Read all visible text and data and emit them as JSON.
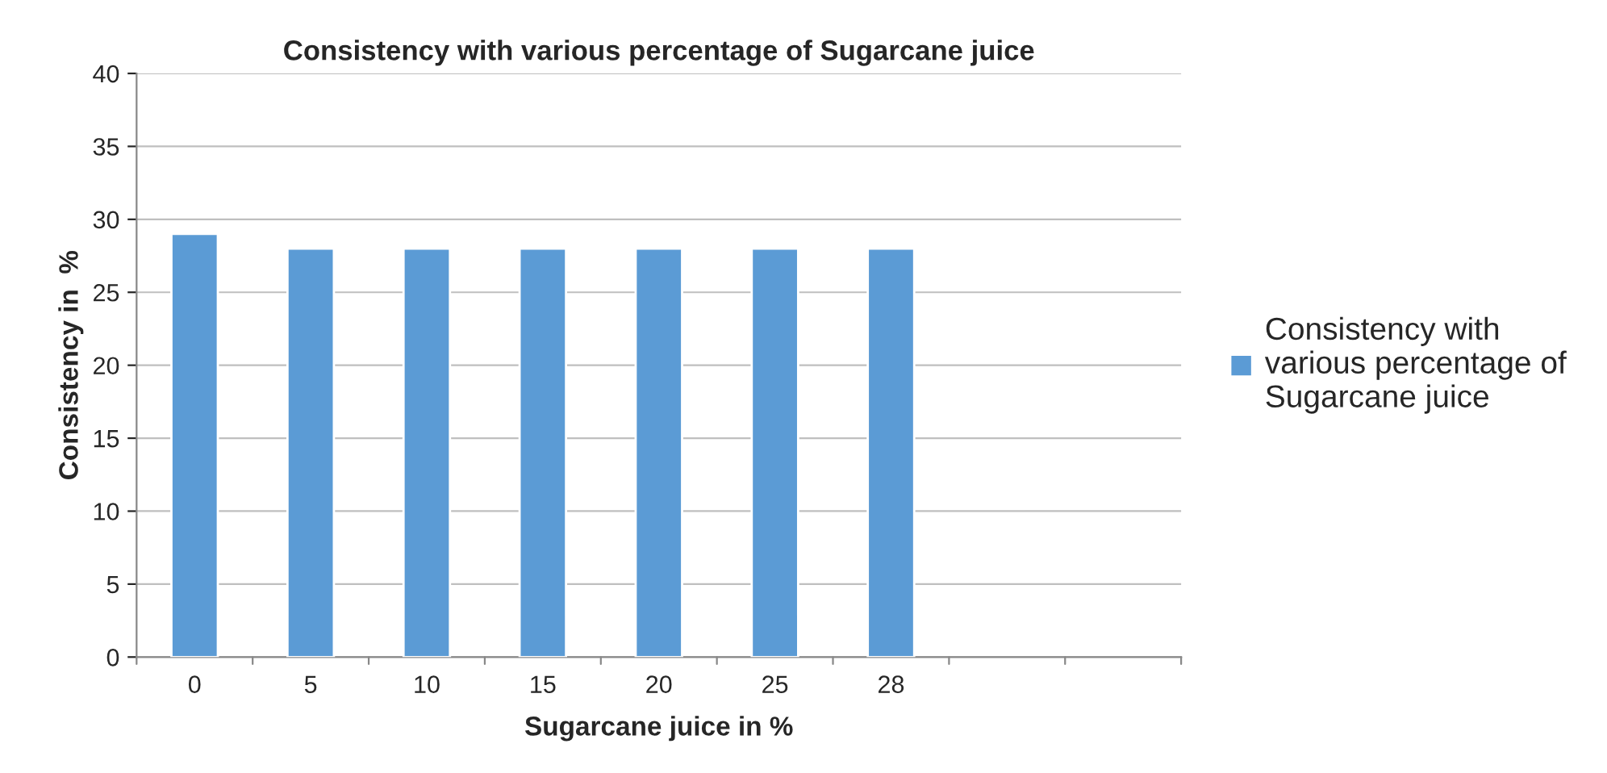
{
  "chart_data": {
    "type": "bar",
    "title": "Consistency with various percentage of Sugarcane juice",
    "xlabel": "Sugarcane juice in %",
    "ylabel": "Consistency in  %",
    "categories": [
      "0",
      "5",
      "10",
      "15",
      "20",
      "25",
      "28",
      null,
      null
    ],
    "series": [
      {
        "name": "Consistency with various percentage of Sugarcane juice",
        "color": "#5b9bd5",
        "values": [
          29,
          28,
          28,
          28,
          28,
          28,
          28,
          null,
          null
        ]
      }
    ],
    "ylim": [
      0,
      40
    ],
    "yticks": [
      0,
      5,
      10,
      15,
      20,
      25,
      30,
      35,
      40
    ],
    "grid": "y",
    "legend": "right"
  }
}
